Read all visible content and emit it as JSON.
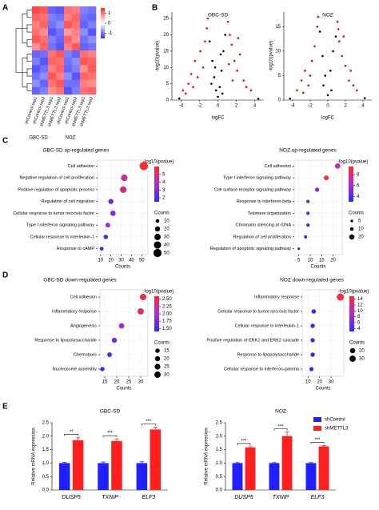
{
  "chart_data": [
    {
      "type": "heatmap",
      "panel": "A",
      "columns": [
        "shControl rep1",
        "shControl rep2",
        "shMETTL3 rep1",
        "shMETTL3 rep2",
        "shControl rep1",
        "shControl rep2",
        "shMETTL3 rep1",
        "shMETTL3 rep2"
      ],
      "groups": [
        "GBC-SD",
        "NOZ"
      ],
      "values": [
        [
          1.3,
          1.2,
          -1.1,
          -1.2,
          1.0,
          0.9,
          -0.9,
          -1.0
        ],
        [
          1.1,
          1.0,
          -0.9,
          -1.0,
          0.9,
          1.1,
          -1.0,
          -1.1
        ],
        [
          0.9,
          1.1,
          -1.0,
          -0.8,
          1.2,
          1.0,
          -1.1,
          -0.9
        ],
        [
          1.0,
          0.8,
          -1.2,
          -1.0,
          0.7,
          0.9,
          -0.8,
          -1.2
        ],
        [
          1.2,
          1.0,
          -0.9,
          -1.1,
          1.1,
          0.8,
          -1.0,
          -0.8
        ],
        [
          0.8,
          1.1,
          -1.0,
          -1.2,
          0.9,
          1.2,
          -1.1,
          -1.0
        ],
        [
          -1.1,
          -1.0,
          1.0,
          1.2,
          -0.9,
          -1.1,
          1.0,
          0.9
        ],
        [
          -0.9,
          -1.2,
          1.1,
          1.0,
          -1.0,
          -0.8,
          1.2,
          1.1
        ],
        [
          -1.2,
          -1.0,
          0.9,
          1.1,
          -1.1,
          -0.9,
          0.8,
          1.2
        ],
        [
          -1.0,
          -0.8,
          1.2,
          0.9,
          -0.8,
          -1.2,
          1.1,
          1.0
        ],
        [
          -0.8,
          -1.1,
          1.0,
          1.2,
          -1.0,
          -1.0,
          0.9,
          0.8
        ],
        [
          -1.1,
          -0.9,
          0.8,
          1.0,
          -1.2,
          -0.9,
          1.0,
          1.1
        ]
      ],
      "colormap": [
        "#2c2cff",
        "#ffffff",
        "#ff2c2c"
      ],
      "colorlim": [
        -1.5,
        1.5
      ],
      "colorticks": [
        -1,
        0,
        1
      ]
    },
    {
      "type": "scatter",
      "panel": "B",
      "title": "GBC-SD",
      "xlabel": "logFC",
      "ylabel": "-log10(pvalue)",
      "xlim": [
        -5,
        5
      ],
      "xticks": [
        -4,
        -2,
        0,
        2,
        4
      ],
      "ylim": [
        0,
        27
      ],
      "yticks": [
        0,
        5,
        10,
        15,
        20,
        25
      ],
      "series": [
        {
          "color": "#ff0000",
          "x": [
            -3.8,
            -3.2,
            -2.9,
            -2.5,
            -2.2,
            -1.9,
            -1.6,
            -1.4,
            -1.2,
            -1.1,
            -2.7,
            -3.5,
            1.1,
            1.3,
            1.5,
            1.8,
            2.1,
            2.4,
            2.8,
            3.1,
            3.6,
            1.2,
            1.6,
            2.2
          ],
          "values": [
            3,
            5,
            8,
            12,
            7,
            15,
            10,
            18,
            22,
            25,
            4,
            2,
            24,
            20,
            17,
            12,
            9,
            14,
            6,
            4,
            3,
            11,
            6,
            19
          ]
        },
        {
          "color": "#000000",
          "x": [
            -0.9,
            -0.6,
            -0.4,
            -0.2,
            0,
            0.2,
            0.4,
            0.6,
            0.8,
            -0.7,
            0.5,
            -0.3,
            0.3,
            -4.2,
            4.4
          ],
          "values": [
            18,
            12,
            7,
            3,
            1,
            4,
            9,
            15,
            20,
            5,
            2,
            10,
            14,
            0.5,
            0.4
          ]
        }
      ]
    },
    {
      "type": "scatter",
      "title": "NOZ",
      "xlabel": "logFC",
      "ylabel": "-log10(pvalue)",
      "xlim": [
        -5,
        5
      ],
      "xticks": [
        -4,
        -2,
        0,
        2,
        4
      ],
      "ylim": [
        0,
        18
      ],
      "yticks": [
        0,
        5,
        10,
        15
      ],
      "series": [
        {
          "color": "#ff0000",
          "x": [
            -3.5,
            -3,
            -2.6,
            -2.2,
            -1.8,
            -1.5,
            -1.2,
            -1.1,
            -2,
            -2.8,
            1.1,
            1.3,
            1.6,
            2,
            2.4,
            2.9,
            3.3,
            1.8,
            1.2,
            2.6
          ],
          "values": [
            2,
            4,
            6,
            3,
            8,
            11,
            15,
            17,
            5,
            1.5,
            16,
            12,
            9,
            7,
            4,
            3,
            2,
            13,
            14.5,
            6
          ]
        },
        {
          "color": "#000000",
          "x": [
            -0.9,
            -0.6,
            -0.3,
            0,
            0.3,
            0.6,
            0.9,
            -0.5,
            0.4,
            -4.3,
            4.2
          ],
          "values": [
            14,
            9,
            5,
            1,
            6,
            10,
            13,
            3,
            2,
            0.3,
            0.4
          ]
        }
      ]
    },
    {
      "type": "dot",
      "panel": "C",
      "title": "GBC-SD up-regulated genes",
      "xlabel": "Counts",
      "categories": [
        "Cell adhesion",
        "Negative regulation of cell proliferation",
        "Positive regulation of apoptotic process",
        "Regulation of cell migration",
        "Cellular response to tumor necrosis factor",
        "Type I interferon signaling pathway",
        "Cellular response to interleukin-1",
        "Response to cAMP"
      ],
      "values": [
        52,
        33,
        32,
        20,
        22,
        17,
        15,
        11
      ],
      "color_values": [
        6,
        4.5,
        4.8,
        2.5,
        3,
        3.5,
        2.2,
        1.6
      ],
      "xlim": [
        7,
        56
      ],
      "xticks": [
        10,
        20,
        30,
        40,
        50
      ],
      "color_label": "-log10(pvalue)",
      "colormap": [
        "#2b2bff",
        "#b32bcc",
        "#ff2b2b"
      ],
      "colorlim": [
        1.5,
        6
      ],
      "colorticks": [
        2,
        3,
        4,
        5
      ],
      "size_label": "Counts",
      "size_ticks": [
        10,
        20,
        30,
        40,
        50
      ]
    },
    {
      "type": "dot",
      "title": "NOZ up-regulated genes",
      "xlabel": "Counts",
      "categories": [
        "Cell adhesion",
        "Type I interferon signaling pathway",
        "Cell surface receptor signaling pathway",
        "Response to interferon-beta",
        "Telomere organization",
        "Chromatin silencing at rDNA",
        "Regulation of cell proliferation",
        "Regulation of apoptotic signaling pathway"
      ],
      "values": [
        22,
        17,
        13,
        9,
        9,
        9,
        8,
        5
      ],
      "color_values": [
        7,
        9,
        5,
        4,
        3.8,
        3.5,
        3.3,
        3.2
      ],
      "xlim": [
        3,
        24
      ],
      "xticks": [
        5,
        10,
        15,
        20
      ],
      "color_label": "-log10(pvalue)",
      "colormap": [
        "#2b2bff",
        "#b32bcc",
        "#ff2b2b"
      ],
      "colorlim": [
        3,
        9.5
      ],
      "colorticks": [
        4,
        6,
        8
      ],
      "size_label": "Counts",
      "size_ticks": [
        5,
        10,
        20
      ]
    },
    {
      "type": "dot",
      "panel": "D",
      "title": "GBC-SD down-regulated genes",
      "xlabel": "Counts",
      "categories": [
        "Cell adhesion",
        "Inflammatory response",
        "Angiogenesis",
        "Response to lipopolysaccharide",
        "Chemotaxis",
        "Nucleosome assembly"
      ],
      "values": [
        31,
        30,
        22,
        19,
        17,
        14
      ],
      "color_values": [
        2.5,
        2.4,
        1.9,
        1.7,
        1.6,
        1.5
      ],
      "xlim": [
        13,
        33
      ],
      "xticks": [
        15,
        20,
        25,
        30
      ],
      "color_label": "-log10(pvalue)",
      "colormap": [
        "#2b2bff",
        "#b32bcc",
        "#ff2b2b"
      ],
      "colorlim": [
        1.4,
        2.6
      ],
      "colorticks": [
        {
          "value": 1.5,
          "label": "1.50"
        },
        1.75,
        {
          "value": 2,
          "label": "2.00"
        },
        2.25,
        {
          "value": 2.5,
          "label": "2.50"
        }
      ],
      "size_label": "Counts",
      "size_ticks": [
        15,
        20,
        25,
        30
      ]
    },
    {
      "type": "dot",
      "title": "NOZ down-regulated genes",
      "xlabel": "Counts",
      "categories": [
        "Inflammatory response",
        "Cellular response to tumor necrosis factor",
        "Cellular response to interleukin-1",
        "Positive regulation of ERK1 and ERK2 cascade",
        "Response to lipopolysaccharide",
        "Cellular response to interferon-gamma"
      ],
      "values": [
        38,
        15,
        14,
        14,
        14,
        13
      ],
      "color_values": [
        14,
        3.5,
        3.2,
        3.2,
        3.3,
        3.1
      ],
      "xlim": [
        5,
        41
      ],
      "xticks": [
        10,
        20,
        30
      ],
      "color_label": "-log10(pvalue)",
      "colormap": [
        "#2b2bff",
        "#b32bcc",
        "#ff2b2b"
      ],
      "colorlim": [
        3,
        15
      ],
      "colorticks": [
        4,
        6,
        8,
        10,
        12,
        14
      ],
      "size_label": "Counts",
      "size_ticks": [
        20,
        30
      ]
    },
    {
      "type": "bar",
      "panel": "E",
      "title": "GBC-SD",
      "ylabel": "Relative mRNA expression",
      "categories": [
        "DUSP5",
        "TXNIP",
        "ELF3"
      ],
      "series": [
        {
          "name": "shControl",
          "color": "#1f1fff",
          "values": [
            1,
            1,
            1
          ],
          "errors": [
            0.03,
            0.04,
            0.05
          ]
        },
        {
          "name": "shMETTL3",
          "color": "#ff1f1f",
          "values": [
            1.85,
            1.82,
            2.25
          ],
          "errors": [
            0.1,
            0.08,
            0.09
          ]
        }
      ],
      "significance": [
        "**",
        "***",
        "***"
      ],
      "ylim": [
        0,
        2.5
      ],
      "yticks": [
        {
          "value": 0,
          "label": "0.0"
        },
        0.5,
        {
          "value": 1,
          "label": "1.0"
        },
        1.5,
        {
          "value": 2,
          "label": "2.0"
        },
        2.5
      ]
    },
    {
      "type": "bar",
      "title": "NOZ",
      "ylabel": "Relative mRNA expression",
      "categories": [
        "DUSP5",
        "TXNIP",
        "ELF3"
      ],
      "series": [
        {
          "name": "shControl",
          "color": "#1f1fff",
          "values": [
            1,
            1,
            1
          ],
          "errors": [
            0.02,
            0.02,
            0.02
          ]
        },
        {
          "name": "shMETTL3",
          "color": "#ff1f1f",
          "values": [
            1.58,
            2.0,
            1.62
          ],
          "errors": [
            0.03,
            0.15,
            0.03
          ]
        }
      ],
      "significance": [
        "***",
        "***",
        "***"
      ],
      "legend": "top-right",
      "ylim": [
        0,
        2.5
      ],
      "yticks": [
        {
          "value": 0,
          "label": "0.0"
        },
        0.5,
        {
          "value": 1,
          "label": "1.0"
        },
        1.5,
        {
          "value": 2,
          "label": "2.0"
        },
        2.5
      ]
    }
  ]
}
